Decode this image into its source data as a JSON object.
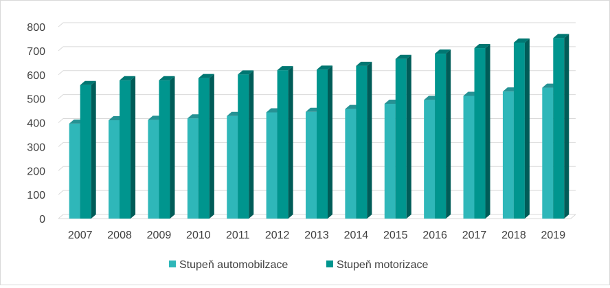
{
  "chart_data": {
    "type": "bar",
    "title": "",
    "xlabel": "",
    "ylabel": "",
    "categories": [
      "2007",
      "2008",
      "2009",
      "2010",
      "2011",
      "2012",
      "2013",
      "2014",
      "2015",
      "2016",
      "2017",
      "2018",
      "2019"
    ],
    "ylim": [
      0,
      800
    ],
    "yticks": [
      0,
      100,
      200,
      300,
      400,
      500,
      600,
      700,
      800
    ],
    "ytick_labels": [
      "0",
      "100",
      "200",
      "300",
      "400",
      "500",
      "600",
      "700",
      "800"
    ],
    "grid": true,
    "style": "3d-clustered-column",
    "legend_position": "bottom",
    "series": [
      {
        "name": "Stupeň automobilzace",
        "color": "#2fb7b9",
        "values": [
          396,
          410,
          412,
          418,
          428,
          443,
          445,
          457,
          479,
          495,
          512,
          530,
          546
        ]
      },
      {
        "name": "Stupeň motorizace",
        "color": "#00958e",
        "values": [
          557,
          577,
          577,
          586,
          601,
          619,
          621,
          637,
          666,
          688,
          711,
          734,
          753
        ]
      }
    ]
  }
}
